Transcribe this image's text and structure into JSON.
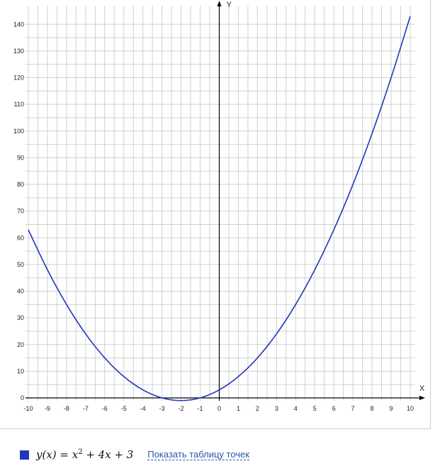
{
  "chart_data": {
    "type": "line",
    "xlabel": "X",
    "ylabel": "Y",
    "xlim": [
      -10,
      10
    ],
    "ylim": [
      0,
      143
    ],
    "x_ticks": [
      -10,
      -9,
      -8,
      -7,
      -6,
      -5,
      -4,
      -3,
      -2,
      -1,
      0,
      1,
      2,
      3,
      4,
      5,
      6,
      7,
      8,
      9,
      10
    ],
    "y_ticks": [
      0,
      10,
      20,
      30,
      40,
      50,
      60,
      70,
      80,
      90,
      100,
      110,
      120,
      130,
      140
    ],
    "grid": true,
    "series": [
      {
        "name": "y(x) = x² + 4x + 3",
        "color": "#2336b8",
        "x": [
          -10,
          -9,
          -8,
          -7,
          -6,
          -5,
          -4,
          -3,
          -2,
          -1,
          0,
          1,
          2,
          3,
          4,
          5,
          6,
          7,
          8,
          9,
          10
        ],
        "y": [
          63,
          48,
          35,
          24,
          15,
          8,
          3,
          0,
          -1,
          0,
          3,
          8,
          15,
          24,
          35,
          48,
          63,
          80,
          99,
          120,
          143
        ]
      }
    ]
  },
  "legend": {
    "swatch_color": "#2336b8",
    "formula_prefix": "y(x) = x",
    "formula_exp": "2",
    "formula_suffix": " + 4x + 3"
  },
  "link": {
    "label": "Показать таблицу точек"
  }
}
